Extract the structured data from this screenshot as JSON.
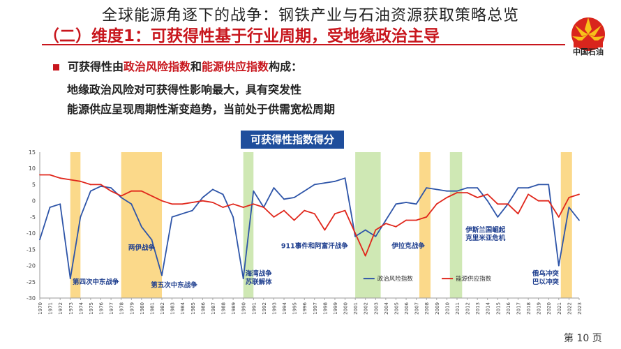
{
  "overlay_title": "全球能源角逐下的战争：钢铁产业与石油资源获取策略总览",
  "heading": "（二）维度1：可获得性基于行业周期，受地缘政治主导",
  "logo_text": "中国石油",
  "bullet": {
    "prefix": "可获得性由",
    "hl1": "政治风险指数",
    "mid": "和",
    "hl2": "能源供应指数",
    "suffix": "构成："
  },
  "sub_lines": [
    "地缘政治风险对可获得性影响最大，具有突发性",
    "能源供应呈现周期性渐变趋势，当前处于供需宽松周期"
  ],
  "page_number": "第 10 页",
  "colors": {
    "blue": "#2d54a8",
    "red": "#e0261b",
    "orange_band": "#fbd98a",
    "green_band": "#cfe8b4",
    "accent": "#c8161d",
    "title_box": "#1f4e9c"
  },
  "chart_data": {
    "type": "line",
    "title": "可获得性指数得分",
    "x": [
      1970,
      1971,
      1972,
      1973,
      1974,
      1975,
      1976,
      1977,
      1978,
      1979,
      1980,
      1981,
      1982,
      1983,
      1984,
      1985,
      1986,
      1987,
      1988,
      1989,
      1990,
      1991,
      1992,
      1993,
      1994,
      1995,
      1996,
      1997,
      1998,
      1999,
      2000,
      2001,
      2002,
      2003,
      2004,
      2005,
      2006,
      2007,
      2008,
      2009,
      2010,
      2011,
      2012,
      2013,
      2014,
      2015,
      2016,
      2017,
      2018,
      2019,
      2020,
      2021,
      2022,
      2023
    ],
    "ylim": [
      -30,
      15
    ],
    "yticks": [
      15,
      10,
      5,
      0,
      -5,
      -10,
      -15,
      -20,
      -25,
      -30
    ],
    "series": [
      {
        "name": "政治风险指数",
        "color": "#2d54a8",
        "values": [
          -12,
          -2,
          -1,
          -24,
          -5,
          3,
          4.5,
          4,
          1,
          -1,
          -8,
          -12,
          -23,
          -5,
          -4,
          -3,
          1,
          3.5,
          2,
          -5,
          -24,
          3,
          -2,
          4,
          0.5,
          1,
          3,
          5,
          5.5,
          6,
          7,
          -11,
          -9,
          -11,
          -6,
          -1,
          -0.5,
          -1,
          4,
          3.5,
          3,
          3,
          4,
          4,
          0,
          -5,
          -1,
          4,
          4,
          5,
          5,
          -20,
          -2,
          -6
        ]
      },
      {
        "name": "能源供应指数",
        "color": "#e0261b",
        "values": [
          8,
          8,
          7,
          6.5,
          6,
          5,
          5,
          3,
          1.5,
          3,
          3,
          1.5,
          0,
          -1,
          -1,
          -0.5,
          0,
          -0.5,
          -2,
          -1,
          -2,
          -1,
          -2,
          -5,
          -3,
          -6,
          -3,
          -4,
          -9,
          -4,
          -3,
          -10,
          -17,
          -9,
          -7,
          -8,
          -6,
          -6,
          -5,
          -1,
          1,
          2.5,
          2.5,
          1,
          2,
          -1,
          -1,
          -4,
          2,
          0,
          0,
          -5,
          1,
          2
        ]
      }
    ],
    "event_bands": [
      {
        "start": 1973,
        "end": 1974,
        "color": "orange"
      },
      {
        "start": 1978,
        "end": 1982,
        "color": "orange"
      },
      {
        "start": 1990,
        "end": 1991,
        "color": "green"
      },
      {
        "start": 2001,
        "end": 2003.5,
        "color": "green"
      },
      {
        "start": 2007.3,
        "end": 2008.4,
        "color": "orange"
      },
      {
        "start": 2010.3,
        "end": 2011.5,
        "color": "green"
      },
      {
        "start": 2021.2,
        "end": 2022.3,
        "color": "orange"
      }
    ],
    "annotations": [
      {
        "text": "第四次中东战争",
        "x": 1975.5,
        "y": -25
      },
      {
        "text": "两伊战争",
        "x": 1980,
        "y": -14.5
      },
      {
        "text": "第五次中东战争",
        "x": 1983.2,
        "y": -26
      },
      {
        "text": "海湾战争",
        "x": 1991.5,
        "y": -22.5
      },
      {
        "text": "苏联解体",
        "x": 1991.5,
        "y": -25
      },
      {
        "text": "911事件和阿富汗战争",
        "x": 1997,
        "y": -14
      },
      {
        "text": "伊拉克战争",
        "x": 2006.2,
        "y": -14
      },
      {
        "text": "伊斯兰国崛起",
        "x": 2013.8,
        "y": -9
      },
      {
        "text": "克里米亚危机",
        "x": 2013.8,
        "y": -11.5
      },
      {
        "text": "俄乌冲突",
        "x": 2019.7,
        "y": -22.5
      },
      {
        "text": "巴以冲突",
        "x": 2019.7,
        "y": -25
      }
    ],
    "legend": {
      "placement": "bottom-center"
    }
  }
}
